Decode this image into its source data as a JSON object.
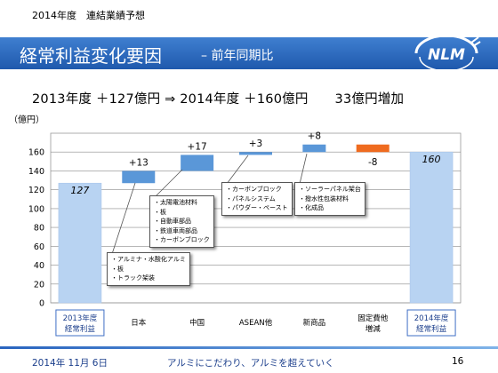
{
  "header": {
    "fiscal_label": "2014年度　連結業績予想",
    "title": "経常利益変化要因",
    "subtitle": "– 前年同期比"
  },
  "summary": {
    "part1": "2013年度 ＋127億円 ⇒ 2014年度 ＋160億円",
    "part2": "33億円増加"
  },
  "colors": {
    "title_band": "#2f6fc4",
    "total_bar": "#b8d3f2",
    "increase_bar": "#5a97d8",
    "decrease_bar": "#ef6b1f",
    "total_label_border": "#3f6fc4"
  },
  "chart_data": {
    "type": "bar",
    "subtype": "waterfall",
    "unit_label": "（億円）",
    "categories": [
      "2013年度\n経常利益",
      "日本",
      "中国",
      "ASEAN他",
      "新商品",
      "固定費他\n増減",
      "2014年度\n経常利益"
    ],
    "bar_kinds": [
      "total",
      "increase",
      "increase",
      "increase",
      "increase",
      "decrease",
      "total"
    ],
    "y_min": [
      0,
      127,
      140,
      157,
      160,
      160,
      0
    ],
    "y_max": [
      127,
      140,
      157,
      160,
      168,
      168,
      160
    ],
    "data_labels": [
      "127",
      "+13",
      "+17",
      "+3",
      "+8",
      "-8",
      "160"
    ],
    "ylim": [
      0,
      180
    ],
    "yticks": [
      "0",
      "20",
      "40",
      "60",
      "80",
      "100",
      "120",
      "140",
      "160"
    ],
    "grid": true,
    "callouts": [
      {
        "lines": [
          "・アルミナ・水酸化アルミ",
          "・板",
          "・トラック架装"
        ]
      },
      {
        "lines": [
          "・太陽電池材料",
          "・板",
          "・自動車部品",
          "・鉄道車両部品",
          "・カーボンブロック"
        ]
      },
      {
        "lines": [
          "・カーボンブロック",
          "・パネルシステム",
          "・パウダー・ペースト"
        ]
      },
      {
        "lines": [
          "・ソーラーパネル架台",
          "・撥水性包装材料",
          "・化成品"
        ]
      }
    ]
  },
  "footer": {
    "date": "2014年 11月 6日",
    "slogan": "アルミにこだわり、アルミを超えていく",
    "page": "16"
  },
  "logo": {
    "text": "NLM",
    "icon": "nlm-logo-icon"
  }
}
